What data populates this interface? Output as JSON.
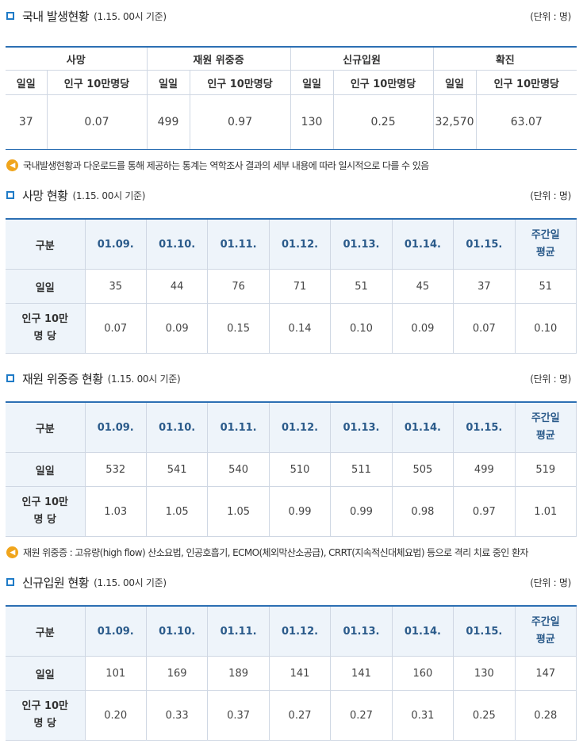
{
  "s1": {
    "title": "국내 발생현황",
    "sub": "(1.15. 00시 기준)",
    "unit": "(단위 : 명)",
    "groups": [
      "사망",
      "재원 위중증",
      "신규입원",
      "확진"
    ],
    "cols": [
      "일일",
      "인구 10만명당",
      "일일",
      "인구 10만명당",
      "일일",
      "인구 10만명당",
      "일일",
      "인구 10만명당"
    ],
    "vals": [
      "37",
      "0.07",
      "499",
      "0.97",
      "130",
      "0.25",
      "32,570",
      "63.07"
    ]
  },
  "note1": "국내발생현황과 다운로드를 통해 제공하는 통계는 역학조사 결과의 세부 내용에 따라 일시적으로 다를 수 있음",
  "s2": {
    "title": "사망 현황",
    "sub": "(1.15. 00시 기준)",
    "unit": "(단위 : 명)",
    "head": [
      "구분",
      "01.09.",
      "01.10.",
      "01.11.",
      "01.12.",
      "01.13.",
      "01.14.",
      "01.15.",
      "주간일",
      "평균"
    ],
    "r1": [
      "일일",
      "35",
      "44",
      "76",
      "71",
      "51",
      "45",
      "37",
      "51"
    ],
    "r2": [
      "인구 10만",
      "명 당",
      "0.07",
      "0.09",
      "0.15",
      "0.14",
      "0.10",
      "0.09",
      "0.07",
      "0.10"
    ]
  },
  "s3": {
    "title": "재원 위중증 현황",
    "sub": "(1.15. 00시 기준)",
    "unit": "(단위 : 명)",
    "head": [
      "구분",
      "01.09.",
      "01.10.",
      "01.11.",
      "01.12.",
      "01.13.",
      "01.14.",
      "01.15.",
      "주간일",
      "평균"
    ],
    "r1": [
      "일일",
      "532",
      "541",
      "540",
      "510",
      "511",
      "505",
      "499",
      "519"
    ],
    "r2": [
      "인구 10만",
      "명 당",
      "1.03",
      "1.05",
      "1.05",
      "0.99",
      "0.99",
      "0.98",
      "0.97",
      "1.01"
    ]
  },
  "note2": "재원 위중증 : 고유량(high flow) 산소요법, 인공호흡기, ECMO(체외막산소공급), CRRT(지속적신대체요법) 등으로 격리 치료 중인 환자",
  "s4": {
    "title": "신규입원 현황",
    "sub": "(1.15. 00시 기준)",
    "unit": "(단위 : 명)",
    "head": [
      "구분",
      "01.09.",
      "01.10.",
      "01.11.",
      "01.12.",
      "01.13.",
      "01.14.",
      "01.15.",
      "주간일",
      "평균"
    ],
    "r1": [
      "일일",
      "101",
      "169",
      "189",
      "141",
      "141",
      "160",
      "130",
      "147"
    ],
    "r2": [
      "인구 10만",
      "명 당",
      "0.20",
      "0.33",
      "0.37",
      "0.27",
      "0.27",
      "0.31",
      "0.25",
      "0.28"
    ]
  }
}
